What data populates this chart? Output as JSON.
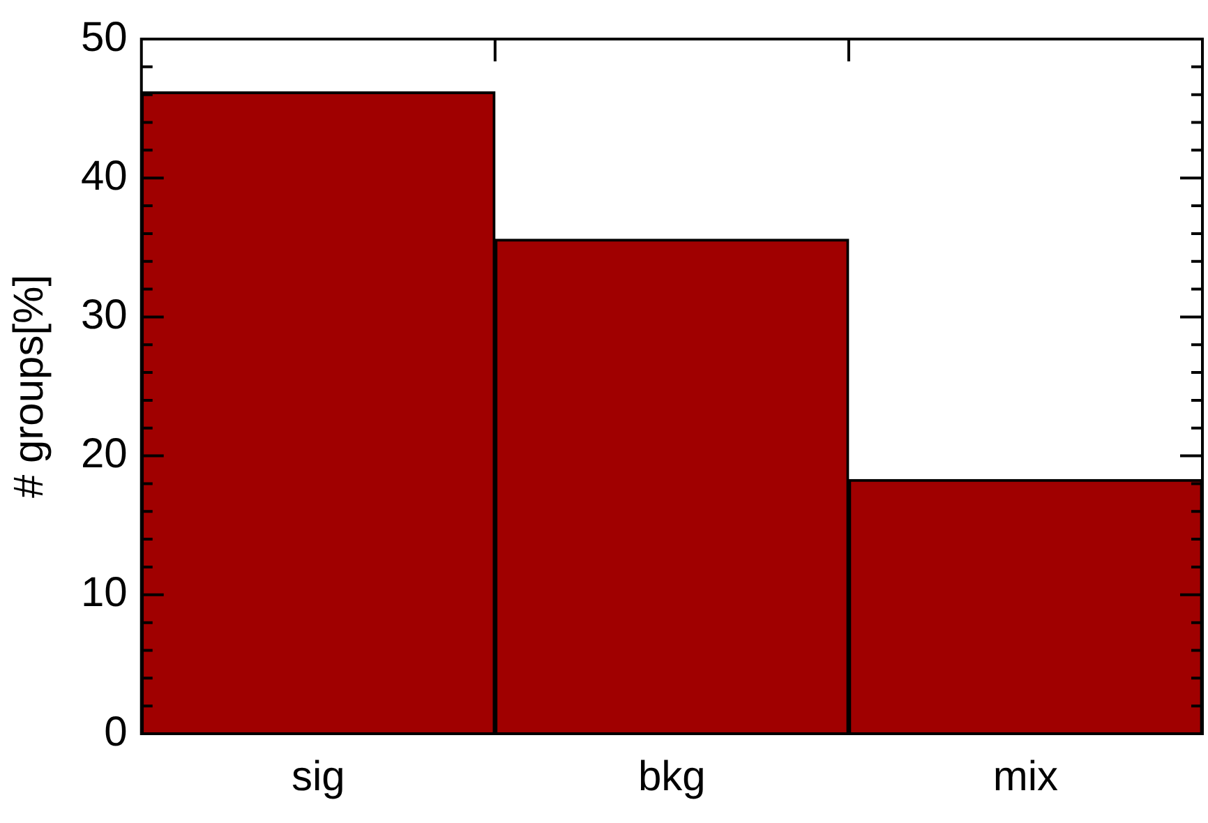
{
  "chart_data": {
    "type": "bar",
    "ylabel": "# groups[%]",
    "categories": [
      "sig",
      "bkg",
      "mix"
    ],
    "values": [
      46.2,
      35.6,
      18.3
    ],
    "color": "#a00000",
    "ylim": [
      0,
      50
    ],
    "yticks": [
      0,
      {
        "value": 2,
        "label": null
      },
      {
        "value": 4,
        "label": null
      },
      {
        "value": 6,
        "label": null
      },
      {
        "value": 8,
        "label": null
      },
      10,
      {
        "value": 12,
        "label": null
      },
      {
        "value": 14,
        "label": null
      },
      {
        "value": 16,
        "label": null
      },
      {
        "value": 18,
        "label": null
      },
      20,
      {
        "value": 22,
        "label": null
      },
      {
        "value": 24,
        "label": null
      },
      {
        "value": 26,
        "label": null
      },
      {
        "value": 28,
        "label": null
      },
      30,
      {
        "value": 32,
        "label": null
      },
      {
        "value": 34,
        "label": null
      },
      {
        "value": 36,
        "label": null
      },
      {
        "value": 38,
        "label": null
      },
      40,
      {
        "value": 42,
        "label": null
      },
      {
        "value": 44,
        "label": null
      },
      {
        "value": 46,
        "label": null
      },
      {
        "value": 48,
        "label": null
      },
      50
    ],
    "grid": false,
    "legend": false
  }
}
